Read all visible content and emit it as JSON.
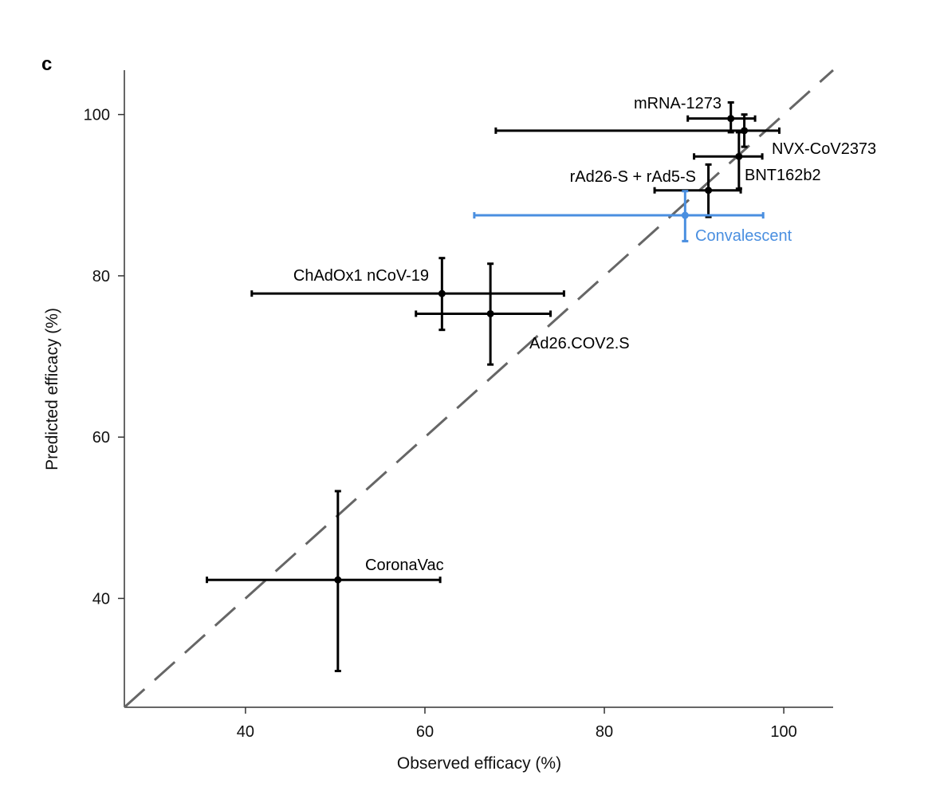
{
  "chart_data": {
    "type": "scatter",
    "panel_label": "c",
    "xlabel": "Observed efficacy (%)",
    "ylabel": "Predicted efficacy (%)",
    "xlim": [
      26.5,
      105.5
    ],
    "ylim": [
      26.5,
      105.5
    ],
    "xticks": [
      40,
      60,
      80,
      100
    ],
    "yticks": [
      40,
      60,
      80,
      100
    ],
    "reference_line": "y = x (dashed)",
    "colors": {
      "default": "#000000",
      "convalescent": "#4a8fe0",
      "reference": "#666666"
    },
    "points": [
      {
        "name": "mRNA-1273",
        "x": 94.1,
        "y": 99.5,
        "x_ci": [
          89.3,
          96.8
        ],
        "y_ci": [
          97.8,
          101.5
        ],
        "color": "#000000"
      },
      {
        "name": "NVX-CoV2373",
        "x": 95.6,
        "y": 98.0,
        "x_ci": [
          67.9,
          99.5
        ],
        "y_ci": [
          96.0,
          100.0
        ],
        "color": "#000000"
      },
      {
        "name": "BNT162b2",
        "x": 95.0,
        "y": 94.8,
        "x_ci": [
          90.0,
          97.6
        ],
        "y_ci": [
          90.8,
          97.8
        ],
        "color": "#000000"
      },
      {
        "name": "rAd26-S + rAd5-S",
        "x": 91.6,
        "y": 90.6,
        "x_ci": [
          85.6,
          95.2
        ],
        "y_ci": [
          87.3,
          93.8
        ],
        "color": "#000000"
      },
      {
        "name": "Convalescent",
        "x": 89.0,
        "y": 87.5,
        "x_ci": [
          65.5,
          97.7
        ],
        "y_ci": [
          84.3,
          90.5
        ],
        "color": "#4a8fe0"
      },
      {
        "name": "ChAdOx1 nCoV-19",
        "x": 61.9,
        "y": 77.8,
        "x_ci": [
          40.7,
          75.5
        ],
        "y_ci": [
          73.3,
          82.2
        ],
        "color": "#000000"
      },
      {
        "name": "Ad26.COV2.S",
        "x": 67.3,
        "y": 75.3,
        "x_ci": [
          59.0,
          74.0
        ],
        "y_ci": [
          69.0,
          81.5
        ],
        "color": "#000000"
      },
      {
        "name": "CoronaVac",
        "x": 50.3,
        "y": 42.3,
        "x_ci": [
          35.7,
          61.7
        ],
        "y_ci": [
          31.0,
          53.3
        ],
        "color": "#000000"
      }
    ]
  }
}
